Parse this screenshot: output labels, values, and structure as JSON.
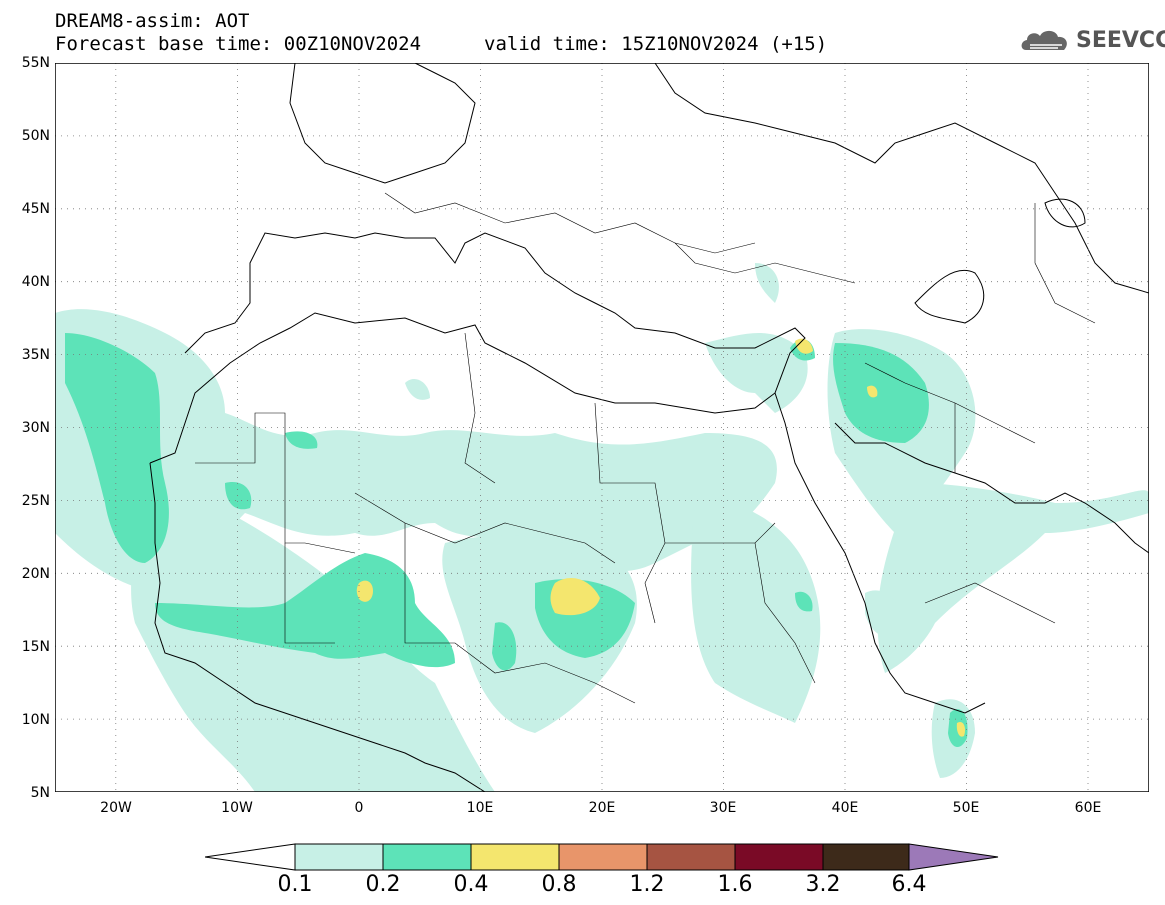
{
  "header": {
    "title": "DREAM8-assim: AOT",
    "base_time": "Forecast base time: 00Z10NOV2024",
    "valid_time": "valid time: 15Z10NOV2024 (+15)"
  },
  "logo": {
    "text": "SEEVCCC",
    "icon": "cloud-logo-icon"
  },
  "map": {
    "projection": "lat-lon",
    "lon_range": [
      -25,
      65
    ],
    "lat_range": [
      5,
      55
    ],
    "grid": "dotted",
    "lat_labels": [
      "55N",
      "50N",
      "45N",
      "40N",
      "35N",
      "30N",
      "25N",
      "20N",
      "15N",
      "10N",
      "5N"
    ],
    "lon_labels": [
      "20W",
      "10W",
      "0",
      "10E",
      "20E",
      "30E",
      "40E",
      "50E",
      "60E"
    ]
  },
  "colorbar": {
    "labels": [
      "0.1",
      "0.2",
      "0.4",
      "0.8",
      "1.2",
      "1.6",
      "3.2",
      "6.4"
    ],
    "colors": [
      "#ffffff",
      "#c7f0e6",
      "#5de3b8",
      "#f4e66e",
      "#e8956a",
      "#a65442",
      "#7a0a26",
      "#3d2a1a",
      "#9c79b8"
    ]
  }
}
